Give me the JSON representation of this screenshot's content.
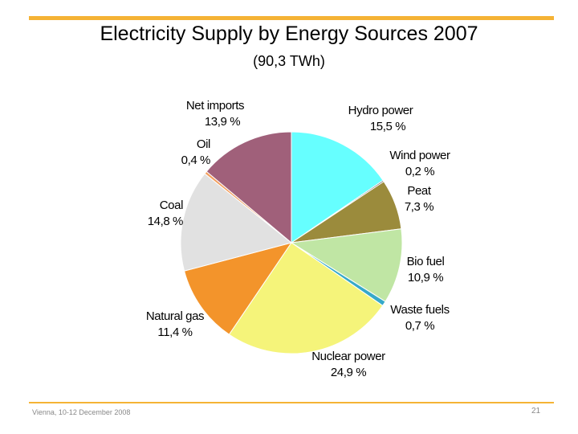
{
  "slide": {
    "title": "Electricity Supply by Energy Sources 2007",
    "subtitle": "(90,3 TWh)",
    "footer_left": "Vienna, 10-12 December 2008",
    "page_number": "21",
    "accent_color": "#f5b335"
  },
  "chart_data": {
    "type": "pie",
    "title": "Electricity Supply by Energy Sources 2007",
    "subtitle": "(90,3 TWh)",
    "slices": [
      {
        "name": "Hydro power",
        "value": 15.5,
        "label": "15,5 %",
        "color": "#66ffff"
      },
      {
        "name": "Wind power",
        "value": 0.2,
        "label": "0,2 %",
        "color": "#4c4c4c"
      },
      {
        "name": "Peat",
        "value": 7.3,
        "label": "7,3 %",
        "color": "#9b8b3c"
      },
      {
        "name": "Bio fuel",
        "value": 10.9,
        "label": "10,9 %",
        "color": "#c0e6a4"
      },
      {
        "name": "Waste fuels",
        "value": 0.7,
        "label": "0,7 %",
        "color": "#36a9c9"
      },
      {
        "name": "Nuclear power",
        "value": 24.9,
        "label": "24,9 %",
        "color": "#f5f47a"
      },
      {
        "name": "Natural gas",
        "value": 11.4,
        "label": "11,4 %",
        "color": "#f3942b"
      },
      {
        "name": "Coal",
        "value": 14.8,
        "label": "14,8 %",
        "color": "#e1e1e1"
      },
      {
        "name": "Oil",
        "value": 0.4,
        "label": "0,4 %",
        "color": "#f3a060"
      },
      {
        "name": "Net imports",
        "value": 13.9,
        "label": "13,9 %",
        "color": "#a0607a"
      }
    ]
  }
}
